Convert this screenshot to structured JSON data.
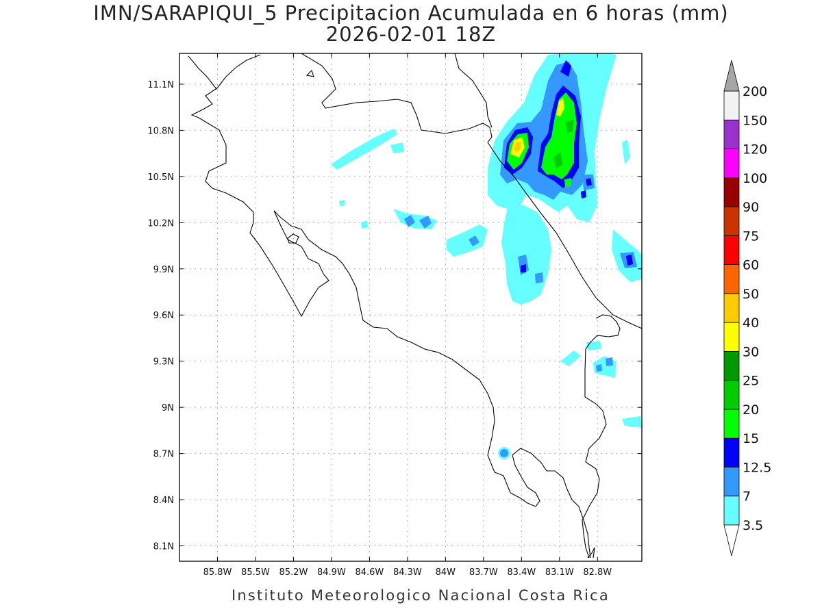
{
  "title_line1": "IMN/SARAPIQUI_5 Precipitacion Acumulada en 6 horas (mm)",
  "title_line2": "2026-02-01 18Z",
  "footer": "Instituto Meteorologico Nacional Costa Rica",
  "map": {
    "lon_range": [
      -86.1,
      -82.45
    ],
    "lat_range": [
      8.0,
      11.3
    ],
    "lat_ticks": [
      "11.1N",
      "10.8N",
      "10.5N",
      "10.2N",
      "9.9N",
      "9.6N",
      "9.3N",
      "9N",
      "8.7N",
      "8.4N",
      "8.1N"
    ],
    "lon_ticks": [
      "85.8W",
      "85.5W",
      "85.2W",
      "84.9W",
      "84.6W",
      "84.3W",
      "84W",
      "83.7W",
      "83.4W",
      "83.1W",
      "82.8W"
    ]
  },
  "colorbar": {
    "levels": [
      "3.5",
      "7",
      "12.5",
      "15",
      "20",
      "25",
      "30",
      "40",
      "50",
      "60",
      "75",
      "90",
      "100",
      "120",
      "150",
      "200"
    ],
    "colors": [
      "#66ffff",
      "#3399ff",
      "#0000ff",
      "#00ff00",
      "#00cc00",
      "#009900",
      "#ffff00",
      "#ffcc00",
      "#ff6600",
      "#ff0000",
      "#cc3300",
      "#990000",
      "#ff00ff",
      "#9933cc",
      "#f2f2f2"
    ],
    "top_triangle_color": "#a6a6a6",
    "bottom_triangle_color": "#ffffff"
  }
}
